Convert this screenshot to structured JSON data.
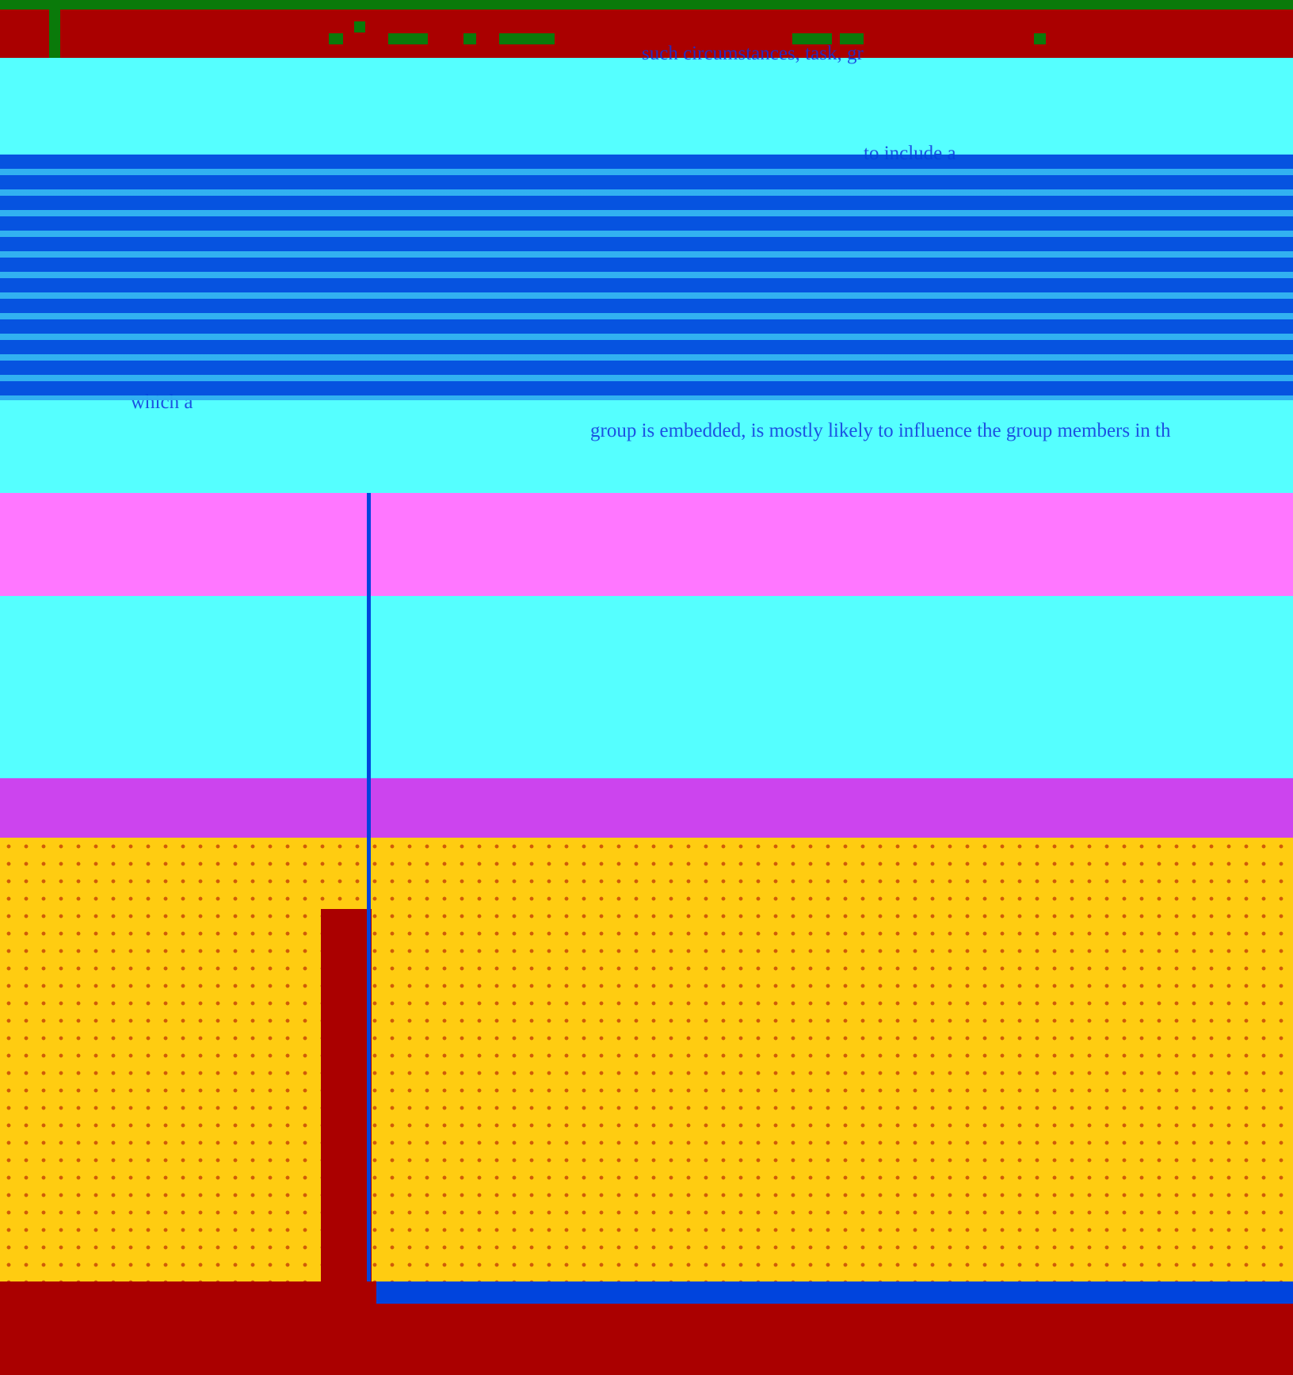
{
  "colors": {
    "background": "#55ffff",
    "header": "#aa0000",
    "accent_green": "#0a7a0a",
    "text_blue": "#0044dd",
    "pink": "#ff77ff",
    "yellow": "#ffcc11"
  },
  "document": {
    "fragments": [
      "such circumstances, task, gr",
      "to include a",
      "which a",
      "group is embedded, is mostly likely to influence the group members in th"
    ]
  }
}
